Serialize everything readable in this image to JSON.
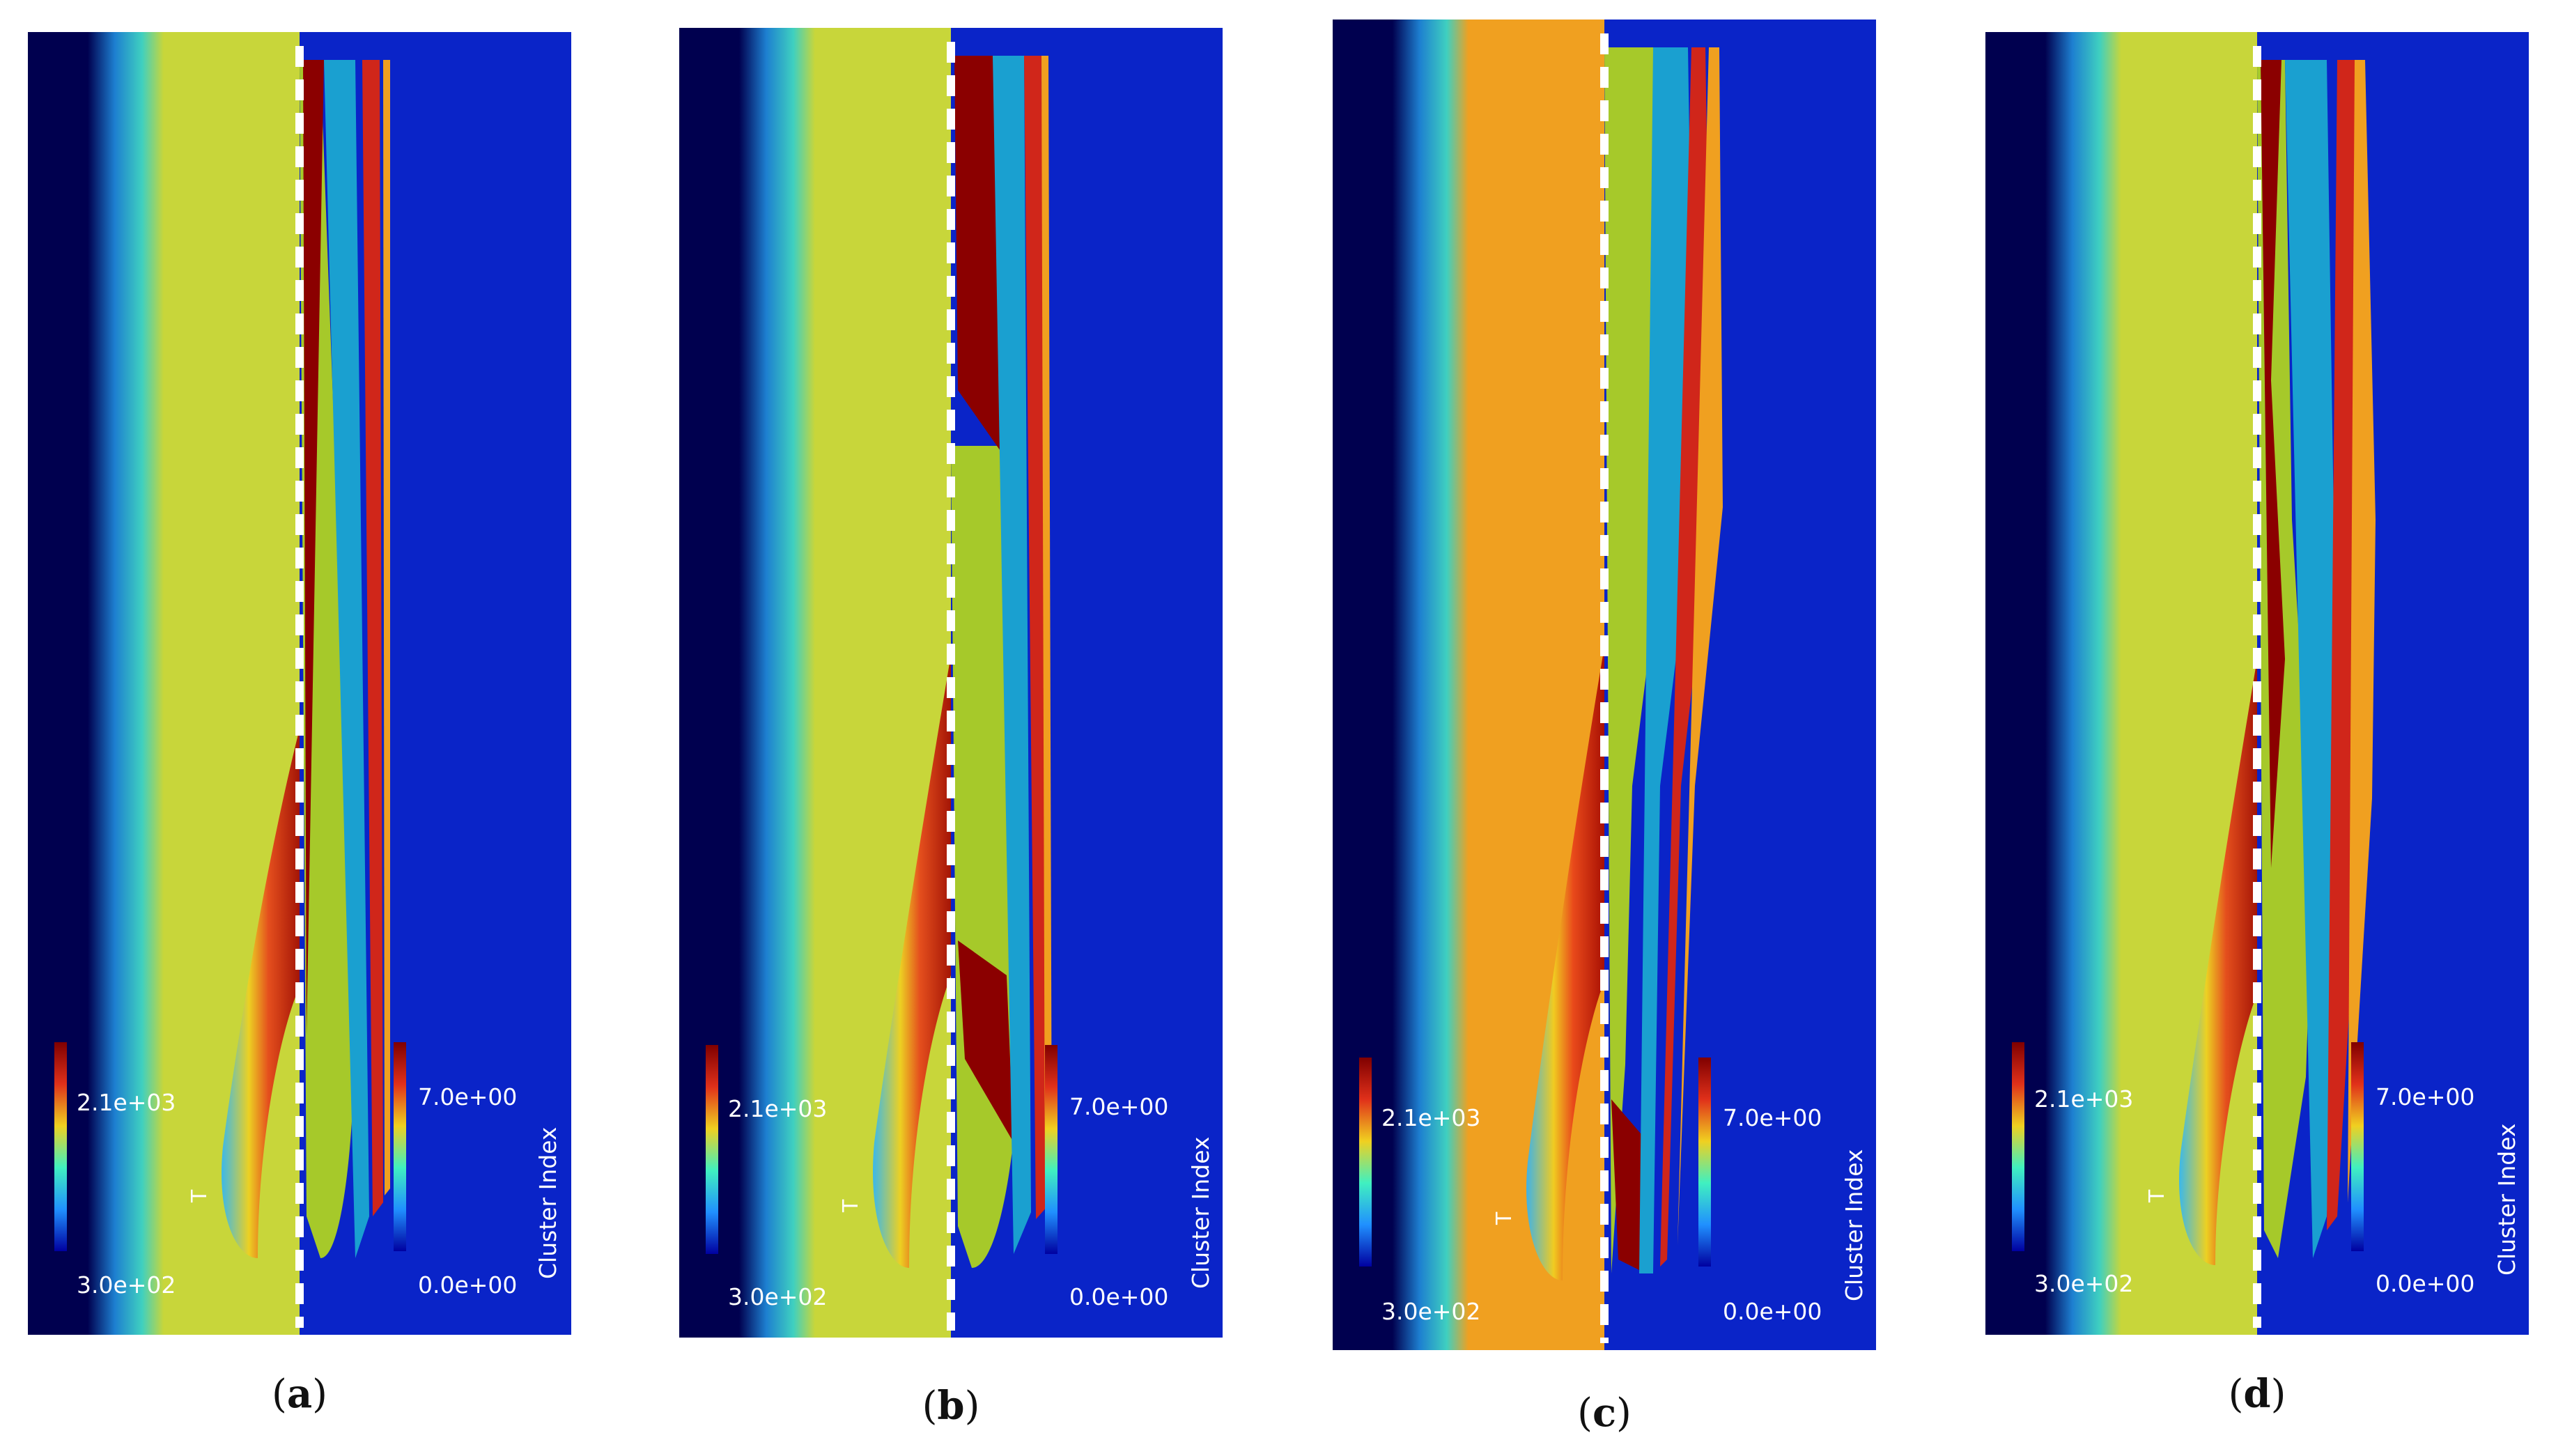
{
  "panels": [
    {
      "caption_letter": "a",
      "t_label": "T",
      "t_max": "2.1e+03",
      "t_min": "3.0e+02",
      "c_label": "Cluster Index",
      "c_max": "7.0e+00",
      "c_min": "0.0e+00"
    },
    {
      "caption_letter": "b",
      "t_label": "T",
      "t_max": "2.1e+03",
      "t_min": "3.0e+02",
      "c_label": "Cluster Index",
      "c_max": "7.0e+00",
      "c_min": "0.0e+00"
    },
    {
      "caption_letter": "c",
      "t_label": "T",
      "t_max": "2.1e+03",
      "t_min": "3.0e+02",
      "c_label": "Cluster Index",
      "c_max": "7.0e+00",
      "c_min": "0.0e+00"
    },
    {
      "caption_letter": "d",
      "t_label": "T",
      "t_max": "2.1e+03",
      "t_min": "3.0e+02",
      "c_label": "Cluster Index",
      "c_max": "7.0e+00",
      "c_min": "0.0e+00"
    }
  ],
  "colors": {
    "background_left": "#00004f",
    "background_right": "#0a24c8",
    "flame_hot": "#8b0000",
    "flame_green": "#a6c92a",
    "flame_cyan": "#1aa0d0",
    "divider": "#ffffff"
  }
}
